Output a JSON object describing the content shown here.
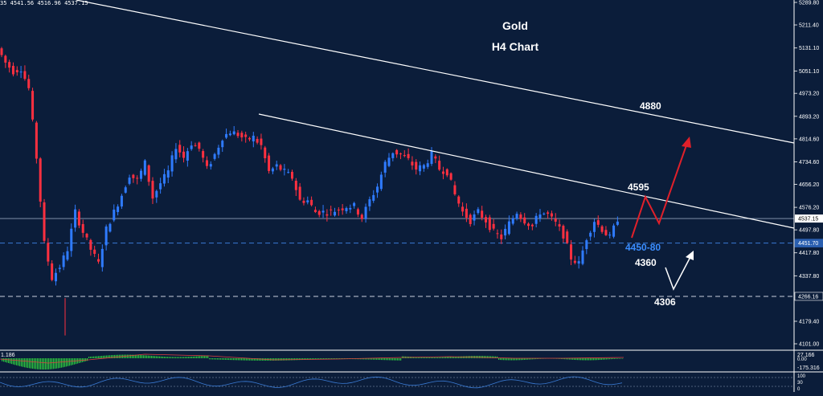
{
  "chart_data": {
    "type": "candlestick",
    "title": "Gold",
    "subtitle": "H4 Chart",
    "ohlc_header": "35 4541.56 4516.96 4537.15",
    "y_ticks": [
      5289.8,
      5211.4,
      5131.1,
      5051.1,
      4973.2,
      4893.2,
      4814.6,
      4734.6,
      4656.2,
      4576.2,
      4497.8,
      4417.8,
      4337.8,
      4179.4,
      4101.0
    ],
    "ylim": [
      4101.0,
      5289.8
    ],
    "current_price": "4537.15",
    "current_price_value": 4537.15,
    "dashed_levels": [
      {
        "label": "4451.70",
        "value": 4451.7
      },
      {
        "label": "4266.16",
        "value": 4266.16
      }
    ],
    "annotations": [
      {
        "text": "4880",
        "price": 4870
      },
      {
        "text": "4595",
        "price": 4605
      },
      {
        "text": "4450-80",
        "price": 4437
      },
      {
        "text": "4360",
        "price": 4390
      },
      {
        "text": "4306",
        "price": 4235
      }
    ],
    "close_path": [
      5130,
      5080,
      5050,
      5060,
      4990,
      4750,
      4450,
      4330,
      4370,
      4430,
      4560,
      4490,
      4430,
      4380,
      4500,
      4560,
      4620,
      4690,
      4670,
      4730,
      4610,
      4660,
      4700,
      4790,
      4750,
      4800,
      4780,
      4710,
      4760,
      4820,
      4840,
      4830,
      4810,
      4820,
      4790,
      4700,
      4720,
      4700,
      4680,
      4600,
      4600,
      4560,
      4560,
      4560,
      4570,
      4580,
      4580,
      4540,
      4600,
      4650,
      4730,
      4770,
      4760,
      4740,
      4710,
      4720,
      4760,
      4710,
      4700,
      4620,
      4560,
      4530,
      4560,
      4530,
      4490,
      4470,
      4520,
      4560,
      4530,
      4510,
      4560,
      4550,
      4520,
      4480,
      4400,
      4380,
      4470,
      4530,
      4500,
      4470,
      4537
    ]
  },
  "indicators": {
    "macd_value": "1.186",
    "macd_axis_labels": [
      "27.166",
      "0.00",
      "-175.316"
    ],
    "rsi_axis_labels": [
      "100",
      "30",
      "0"
    ]
  },
  "colors": {
    "background": "#0b1d3a",
    "bull": "#2f7bff",
    "bear": "#ff3040",
    "projection_bull": "#e0202a",
    "annotation_blue": "#3a8dff",
    "macd_hist": "#2ecc40"
  }
}
